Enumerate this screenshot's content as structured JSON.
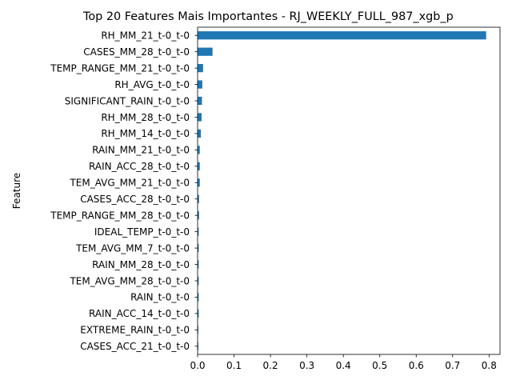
{
  "chart_data": {
    "type": "bar",
    "orientation": "horizontal",
    "title": "Top 20 Features Mais Importantes - RJ_WEEKLY_FULL_987_xgb_p",
    "ylabel": "Feature",
    "xlabel": "",
    "xlim": [
      0,
      0.83
    ],
    "xticks": [
      "0.0",
      "0.1",
      "0.2",
      "0.3",
      "0.4",
      "0.5",
      "0.6",
      "0.7",
      "0.8"
    ],
    "bar_color": "#1f77b4",
    "grid": false,
    "legend": "none",
    "categories": [
      "RH_MM_21_t-0_t-0",
      "CASES_MM_28_t-0_t-0",
      "TEMP_RANGE_MM_21_t-0_t-0",
      "RH_AVG_t-0_t-0",
      "SIGNIFICANT_RAIN_t-0_t-0",
      "RH_MM_28_t-0_t-0",
      "RH_MM_14_t-0_t-0",
      "RAIN_MM_21_t-0_t-0",
      "RAIN_ACC_28_t-0_t-0",
      "TEM_AVG_MM_21_t-0_t-0",
      "CASES_ACC_28_t-0_t-0",
      "TEMP_RANGE_MM_28_t-0_t-0",
      "IDEAL_TEMP_t-0_t-0",
      "TEM_AVG_MM_7_t-0_t-0",
      "RAIN_MM_28_t-0_t-0",
      "TEM_AVG_MM_28_t-0_t-0",
      "RAIN_t-0_t-0",
      "RAIN_ACC_14_t-0_t-0",
      "EXTREME_RAIN_t-0_t-0",
      "CASES_ACC_21_t-0_t-0"
    ],
    "values": [
      0.792,
      0.041,
      0.015,
      0.013,
      0.012,
      0.011,
      0.009,
      0.006,
      0.006,
      0.006,
      0.004,
      0.004,
      0.003,
      0.003,
      0.003,
      0.003,
      0.003,
      0.003,
      0.002,
      0.002
    ]
  }
}
